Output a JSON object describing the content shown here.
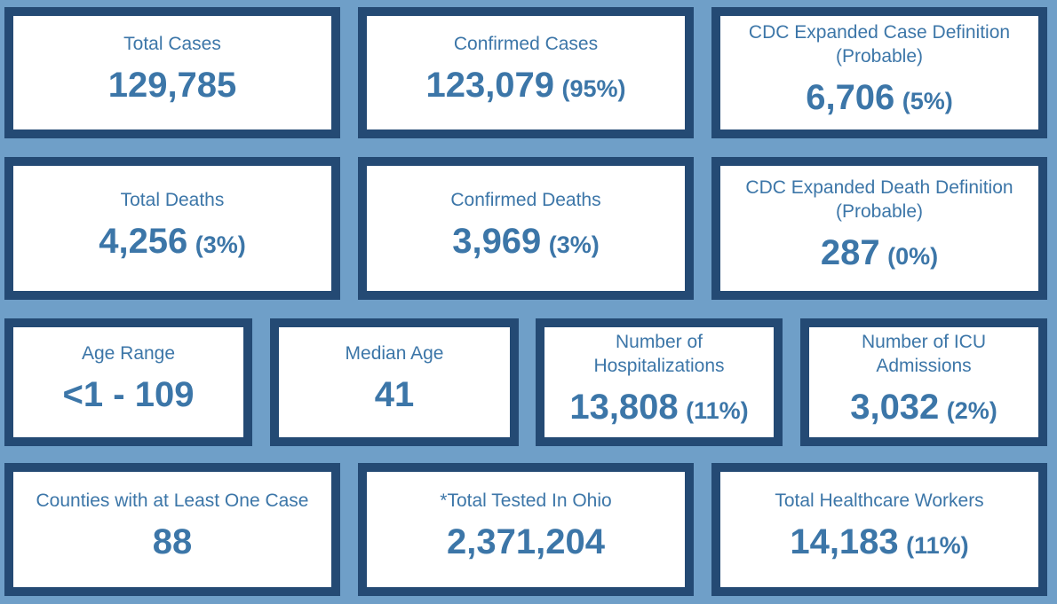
{
  "cards": [
    {
      "label": "Total Cases",
      "value": "129,785",
      "pct": ""
    },
    {
      "label": "Confirmed Cases",
      "value": "123,079",
      "pct": "(95%)"
    },
    {
      "label": "CDC Expanded Case Definition",
      "label2": "(Probable)",
      "value": "6,706",
      "pct": "(5%)"
    },
    {
      "label": "Total Deaths",
      "value": "4,256",
      "pct": "(3%)"
    },
    {
      "label": "Confirmed Deaths",
      "value": "3,969",
      "pct": "(3%)"
    },
    {
      "label": "CDC Expanded Death Definition",
      "label2": "(Probable)",
      "value": "287",
      "pct": "(0%)"
    },
    {
      "label": "Age Range",
      "value": "<1 - 109",
      "pct": ""
    },
    {
      "label": "Median Age",
      "value": "41",
      "pct": ""
    },
    {
      "label": "Number of",
      "label2": "Hospitalizations",
      "value": "13,808",
      "pct": "(11%)"
    },
    {
      "label": "Number of ICU",
      "label2": "Admissions",
      "value": "3,032",
      "pct": "(2%)"
    },
    {
      "label": "Counties with at Least One Case",
      "value": "88",
      "pct": ""
    },
    {
      "label": "*Total Tested In Ohio",
      "value": "2,371,204",
      "pct": ""
    },
    {
      "label": "Total Healthcare Workers",
      "value": "14,183",
      "pct": "(11%)"
    }
  ],
  "colors": {
    "background": "#6f9fc8",
    "card_border": "#244a74",
    "card_text": "#3c76a8"
  }
}
